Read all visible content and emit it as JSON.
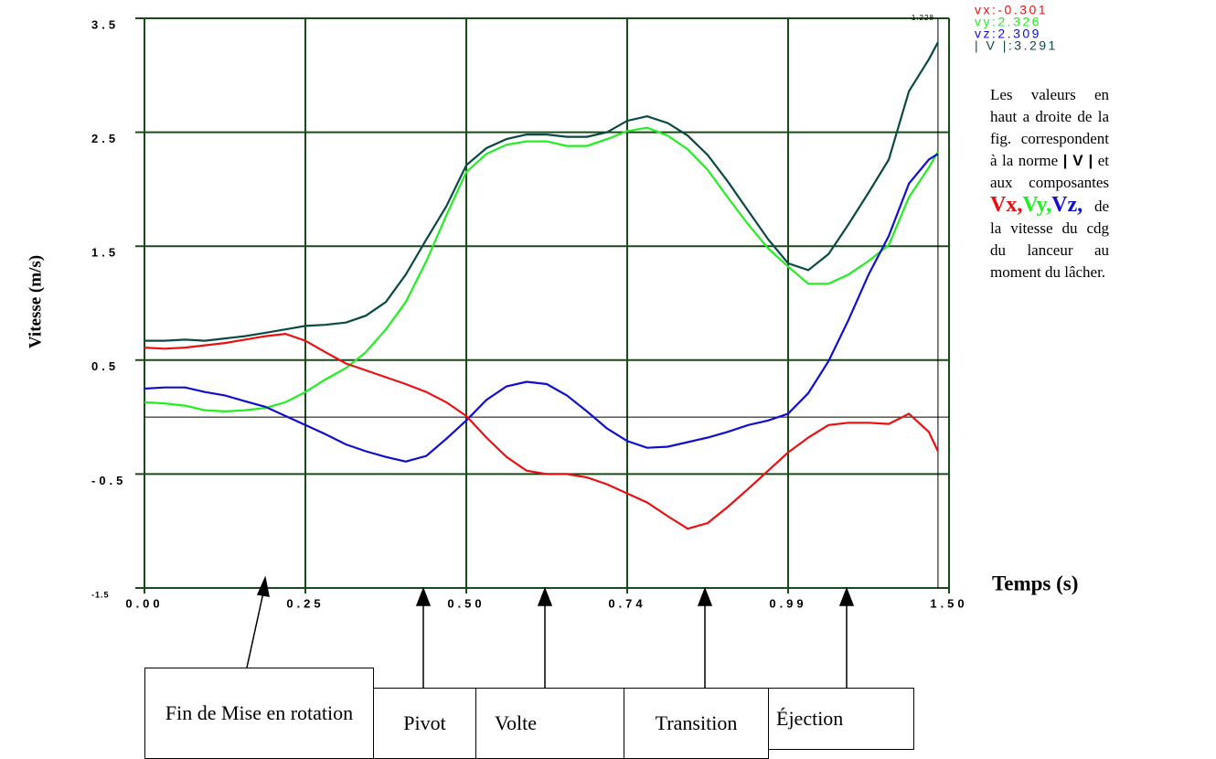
{
  "chart_data": {
    "type": "line",
    "x_label": "Temps (s)",
    "y_label": "Vitesse (m/s)",
    "x": [
      0,
      0.031,
      0.063,
      0.094,
      0.125,
      0.156,
      0.188,
      0.219,
      0.25,
      0.281,
      0.313,
      0.344,
      0.375,
      0.406,
      0.438,
      0.469,
      0.5,
      0.53,
      0.56,
      0.59,
      0.62,
      0.65,
      0.68,
      0.71,
      0.74,
      0.771,
      0.803,
      0.834,
      0.865,
      0.896,
      0.928,
      0.959,
      0.99,
      1.054,
      1.118,
      1.181,
      1.245,
      1.309,
      1.373,
      1.436,
      1.465
    ],
    "series": [
      {
        "color": "#0b4a44",
        "values": [
          0.67,
          0.67,
          0.68,
          0.67,
          0.69,
          0.71,
          0.74,
          0.77,
          0.8,
          0.81,
          0.83,
          0.89,
          1.01,
          1.25,
          1.56,
          1.85,
          2.21,
          2.36,
          2.44,
          2.48,
          2.48,
          2.46,
          2.46,
          2.5,
          2.6,
          2.64,
          2.58,
          2.47,
          2.3,
          2.07,
          1.81,
          1.56,
          1.35,
          1.29,
          1.43,
          1.69,
          1.97,
          2.26,
          2.86,
          3.14,
          3.29
        ]
      },
      {
        "color": "#22ee22",
        "values": [
          0.13,
          0.12,
          0.1,
          0.06,
          0.05,
          0.06,
          0.08,
          0.13,
          0.22,
          0.33,
          0.43,
          0.57,
          0.77,
          1.01,
          1.37,
          1.77,
          2.15,
          2.31,
          2.39,
          2.42,
          2.42,
          2.38,
          2.38,
          2.44,
          2.51,
          2.54,
          2.47,
          2.35,
          2.17,
          1.93,
          1.69,
          1.48,
          1.32,
          1.17,
          1.17,
          1.25,
          1.37,
          1.51,
          1.93,
          2.19,
          2.33
        ]
      },
      {
        "color": "#1010cc",
        "values": [
          0.25,
          0.26,
          0.26,
          0.22,
          0.19,
          0.14,
          0.09,
          0.01,
          -0.07,
          -0.15,
          -0.24,
          -0.3,
          -0.35,
          -0.39,
          -0.34,
          -0.19,
          -0.03,
          0.15,
          0.27,
          0.31,
          0.29,
          0.19,
          0.05,
          -0.1,
          -0.21,
          -0.27,
          -0.26,
          -0.22,
          -0.18,
          -0.13,
          -0.07,
          -0.03,
          0.03,
          0.21,
          0.49,
          0.85,
          1.25,
          1.59,
          2.05,
          2.26,
          2.31
        ]
      },
      {
        "color": "#e81010",
        "values": [
          0.61,
          0.6,
          0.61,
          0.63,
          0.65,
          0.68,
          0.71,
          0.73,
          0.67,
          0.57,
          0.47,
          0.41,
          0.35,
          0.29,
          0.22,
          0.13,
          0.01,
          -0.18,
          -0.35,
          -0.47,
          -0.5,
          -0.5,
          -0.53,
          -0.59,
          -0.67,
          -0.75,
          -0.87,
          -0.98,
          -0.93,
          -0.79,
          -0.63,
          -0.47,
          -0.31,
          -0.18,
          -0.07,
          -0.05,
          -0.05,
          -0.06,
          0.03,
          -0.13,
          -0.3
        ]
      }
    ],
    "xlim": [
      0,
      1.5
    ],
    "xticks": [
      {
        "value": 0,
        "label": "0.00"
      },
      0.25,
      {
        "value": 0.5,
        "label": "0.50"
      },
      0.74,
      0.99,
      {
        "value": 1.5,
        "label": "1.50"
      }
    ],
    "x_spacing": "ticks",
    "ylim": [
      -1.5,
      3.5
    ],
    "yticks": [
      -1.5,
      -0.5,
      0.5,
      1.5,
      2.5,
      3.5
    ],
    "hlines": [
      0
    ],
    "grid": true,
    "cursor_label": "1.228",
    "readouts": [
      {
        "text": "vx:-0.301",
        "color": "#e81010"
      },
      {
        "text": "vy:2.326",
        "color": "#22ee22"
      },
      {
        "text": "vz:2.309",
        "color": "#1010cc"
      },
      {
        "text": "| V |:3.291",
        "color": "#0b4a44"
      }
    ]
  },
  "note": [
    "Les valeurs en haut a droite de la fig. correspondent à la norme",
    "| V |",
    "et aux composantes",
    "Vx,",
    "Vy,",
    "Vz,",
    "de la vitesse du cdg du lanceur au moment du lâcher."
  ],
  "phases": [
    "Fin de Mise en rotation",
    "Pivot",
    "Volte",
    "Transition",
    "Éjection"
  ]
}
